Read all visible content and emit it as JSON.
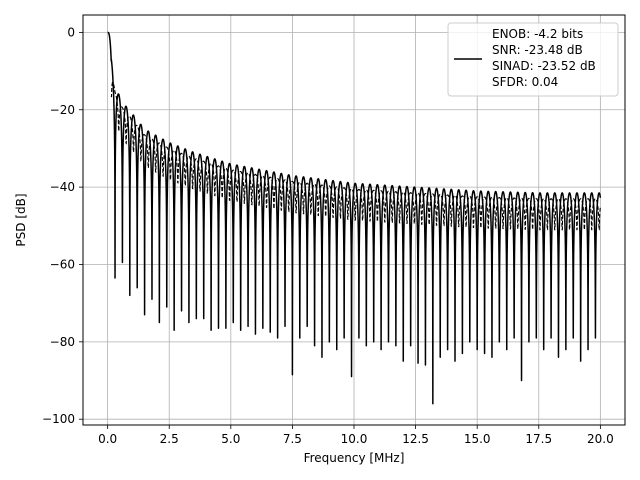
{
  "chart_data": {
    "type": "line",
    "xlabel": "Frequency [MHz]",
    "ylabel": "PSD [dB]",
    "xlim": [
      -1.0,
      21.0
    ],
    "ylim": [
      -101.5,
      4.5
    ],
    "xticks": [
      0.0,
      2.5,
      5.0,
      7.5,
      10.0,
      12.5,
      15.0,
      17.5,
      20.0
    ],
    "xtick_labels": [
      "0.0",
      "2.5",
      "5.0",
      "7.5",
      "10.0",
      "12.5",
      "15.0",
      "17.5",
      "20.0"
    ],
    "yticks": [
      0,
      -20,
      -40,
      -60,
      -80,
      -100
    ],
    "ytick_labels": [
      "0",
      "−20",
      "−40",
      "−60",
      "−80",
      "−100"
    ],
    "grid": true,
    "legend_position": "top-right",
    "line_color": "#000000",
    "x_range": [
      0.0,
      20.0
    ],
    "lobe_spacing_mhz": 0.3,
    "envelope_points": [
      [
        0.0,
        0.0
      ],
      [
        0.3,
        -14
      ],
      [
        0.6,
        -18
      ],
      [
        1.0,
        -21
      ],
      [
        1.5,
        -25
      ],
      [
        2.5,
        -28.5
      ],
      [
        3.5,
        -31
      ],
      [
        5.0,
        -34
      ],
      [
        7.5,
        -37
      ],
      [
        10.0,
        -39
      ],
      [
        12.5,
        -40
      ],
      [
        15.0,
        -41
      ],
      [
        17.5,
        -41.5
      ],
      [
        20.0,
        -41.5
      ]
    ],
    "null_points": [
      [
        0.3,
        -63.5
      ],
      [
        0.6,
        -59.5
      ],
      [
        0.9,
        -68
      ],
      [
        1.2,
        -66
      ],
      [
        1.5,
        -73
      ],
      [
        1.8,
        -69
      ],
      [
        2.1,
        -75
      ],
      [
        2.5,
        -71
      ],
      [
        2.8,
        -77
      ],
      [
        3.1,
        -72
      ],
      [
        3.4,
        -75
      ],
      [
        3.7,
        -74
      ],
      [
        4.0,
        -74
      ],
      [
        4.3,
        -77
      ],
      [
        4.6,
        -76.5
      ],
      [
        5.0,
        -75
      ],
      [
        5.3,
        -77
      ],
      [
        5.6,
        -76
      ],
      [
        5.9,
        -78
      ],
      [
        6.2,
        -76.5
      ],
      [
        6.5,
        -77.5
      ],
      [
        6.8,
        -79
      ],
      [
        7.1,
        -76
      ],
      [
        7.5,
        -88.5
      ],
      [
        7.8,
        -79
      ],
      [
        8.1,
        -76
      ],
      [
        8.4,
        -81
      ],
      [
        8.7,
        -84
      ],
      [
        9.0,
        -80
      ],
      [
        9.3,
        -82
      ],
      [
        9.6,
        -79
      ],
      [
        10.0,
        -89
      ],
      [
        10.3,
        -79
      ],
      [
        10.6,
        -81
      ],
      [
        10.9,
        -80
      ],
      [
        11.2,
        -82
      ],
      [
        11.5,
        -80
      ],
      [
        11.8,
        -81
      ],
      [
        12.1,
        -85
      ],
      [
        12.4,
        -81
      ],
      [
        12.7,
        -85.5
      ],
      [
        13.0,
        -86
      ],
      [
        13.2,
        -96
      ],
      [
        13.5,
        -84
      ],
      [
        13.8,
        -82
      ],
      [
        14.1,
        -85
      ],
      [
        14.4,
        -83
      ],
      [
        14.7,
        -80
      ],
      [
        15.0,
        -82
      ],
      [
        15.3,
        -83
      ],
      [
        15.6,
        -84
      ],
      [
        15.9,
        -80
      ],
      [
        16.2,
        -82
      ],
      [
        16.5,
        -79
      ],
      [
        16.8,
        -90
      ],
      [
        17.1,
        -80
      ],
      [
        17.4,
        -79
      ],
      [
        17.7,
        -82
      ],
      [
        18.0,
        -79
      ],
      [
        18.3,
        -84
      ],
      [
        18.6,
        -82
      ],
      [
        18.9,
        -79
      ],
      [
        19.2,
        -85
      ],
      [
        19.5,
        -82
      ],
      [
        19.8,
        -79
      ],
      [
        20.0,
        -70.5
      ]
    ],
    "series": [
      {
        "name": "ENOB: -4.2 bits\nSNR: -23.48 dB\nSINAD: -23.52 dB\nSFDR: 0.04",
        "color": "#000000"
      }
    ]
  },
  "legend": {
    "lines": [
      "ENOB: -4.2 bits",
      "SNR: -23.48 dB",
      "SINAD: -23.52 dB",
      "SFDR: 0.04"
    ]
  }
}
